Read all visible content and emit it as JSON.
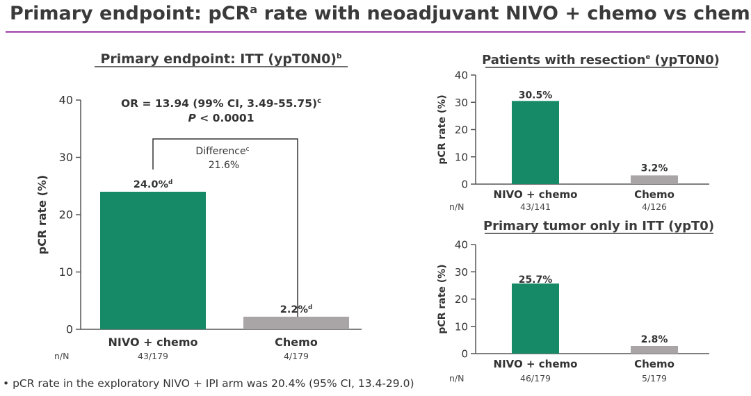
{
  "title": {
    "main": "Primary endpoint: pCR",
    "sup": "a",
    "rest": " rate with neoadjuvant NIVO + chemo vs chemo"
  },
  "colors": {
    "nivo": "#168a66",
    "chemo": "#a9a4a5",
    "accent": "#9b3fa5"
  },
  "footnote": "• pCR rate in the exploratory NIVO + IPI arm was 20.4% (95% CI, 13.4-29.0)",
  "chart_data": [
    {
      "type": "bar",
      "title": "Primary endpoint: ITT (ypT0N0)",
      "title_sup": "b",
      "ylabel": "pCR rate (%)",
      "ylim": [
        0,
        40
      ],
      "yticks": [
        0,
        10,
        20,
        30,
        40
      ],
      "categories": [
        "NIVO + chemo",
        "Chemo"
      ],
      "values": [
        24.0,
        2.2
      ],
      "value_labels": [
        "24.0%",
        "2.2%"
      ],
      "value_sups": [
        "d",
        "d"
      ],
      "nN_label": "n/N",
      "nN": [
        "43/179",
        "4/179"
      ],
      "stat_line1": "OR = 13.94 (99% CI, 3.49-55.75)",
      "stat_line1_sup": "c",
      "stat_line2_p": "P",
      "stat_line2_rest": " < 0.0001",
      "difference_label": "Difference",
      "difference_sup": "c",
      "difference_value": "21.6%"
    },
    {
      "type": "bar",
      "title": "Patients with resection",
      "title_sup": "e",
      "title_rest": " (ypT0N0)",
      "ylabel": "pCR rate (%)",
      "ylim": [
        0,
        40
      ],
      "yticks": [
        0,
        10,
        20,
        30,
        40
      ],
      "categories": [
        "NIVO + chemo",
        "Chemo"
      ],
      "values": [
        30.5,
        3.2
      ],
      "value_labels": [
        "30.5%",
        "3.2%"
      ],
      "nN_label": "n/N",
      "nN": [
        "43/141",
        "4/126"
      ]
    },
    {
      "type": "bar",
      "title": "Primary tumor only in ITT (ypT0)",
      "ylabel": "pCR rate (%)",
      "ylim": [
        0,
        40
      ],
      "yticks": [
        0,
        10,
        20,
        30,
        40
      ],
      "categories": [
        "NIVO + chemo",
        "Chemo"
      ],
      "values": [
        25.7,
        2.8
      ],
      "value_labels": [
        "25.7%",
        "2.8%"
      ],
      "nN_label": "n/N",
      "nN": [
        "46/179",
        "5/179"
      ]
    }
  ]
}
